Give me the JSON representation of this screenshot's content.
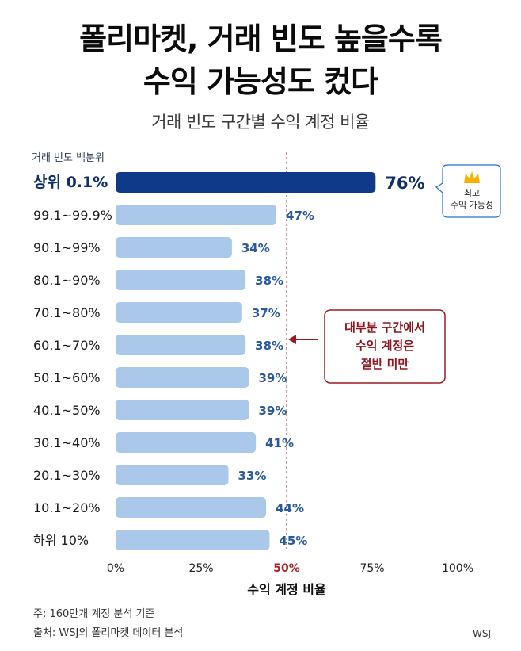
{
  "title_line1": "폴리마켓, 거래 빈도 높을수록",
  "title_line2": "수익 가능성도 컸다",
  "subtitle": "거래 빈도 구간별 수익 계정 비율",
  "colors": {
    "highlight_bar": "#0f3a8a",
    "bar": "#a9c8ea",
    "reference_line": "#b0202a",
    "annotation_border": "#9a1b24",
    "callout_border": "#2c6fc9"
  },
  "chart_data": {
    "type": "bar",
    "orientation": "horizontal",
    "ylabel": "거래 빈도 백분위",
    "xlabel": "수익 계정 비율",
    "categories": [
      "상위 0.1%",
      "99.1~99.9%",
      "90.1~99%",
      "80.1~90%",
      "70.1~80%",
      "60.1~70%",
      "50.1~60%",
      "40.1~50%",
      "30.1~40%",
      "20.1~30%",
      "10.1~20%",
      "하위 10%"
    ],
    "values": [
      76,
      47,
      34,
      38,
      37,
      38,
      39,
      39,
      41,
      33,
      44,
      45
    ],
    "value_labels": [
      "76%",
      "47%",
      "34%",
      "38%",
      "37%",
      "38%",
      "39%",
      "39%",
      "41%",
      "33%",
      "44%",
      "45%"
    ],
    "xlim": [
      0,
      100
    ],
    "xticks": [
      0,
      25,
      50,
      75,
      100
    ],
    "xtick_labels": [
      "0%",
      "25%",
      "50%",
      "75%",
      "100%"
    ],
    "reference_line": 50,
    "highlight_index": 0,
    "grid": false,
    "annotations": {
      "top_callout": {
        "icon": "crown-icon",
        "lines": [
          "최고",
          "수익 가능성"
        ]
      },
      "middle_note": {
        "icon": "arrow-left-icon",
        "lines": [
          "대부분 구간에서",
          "수익 계정은",
          "절반 미만"
        ]
      }
    }
  },
  "footnotes": [
    "주: 160만개 계정 분석 기준",
    "출처: WSJ의 폴리마켓 데이터 분석"
  ],
  "source_mark": "WSJ"
}
